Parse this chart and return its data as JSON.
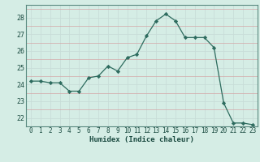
{
  "x": [
    0,
    1,
    2,
    3,
    4,
    5,
    6,
    7,
    8,
    9,
    10,
    11,
    12,
    13,
    14,
    15,
    16,
    17,
    18,
    19,
    20,
    21,
    22,
    23
  ],
  "y": [
    24.2,
    24.2,
    24.1,
    24.1,
    23.6,
    23.6,
    24.4,
    24.5,
    25.1,
    24.8,
    25.6,
    25.8,
    26.9,
    27.8,
    28.2,
    27.8,
    26.8,
    26.8,
    26.8,
    26.2,
    22.9,
    21.7,
    21.7,
    21.6
  ],
  "line_color": "#2d6b5e",
  "marker": "D",
  "marker_size": 2.2,
  "bg_color": "#d5ede5",
  "grid_major_color": "#c8ddd8",
  "grid_minor_color": "#e0b8b8",
  "xlabel": "Humidex (Indice chaleur)",
  "ylim": [
    21.5,
    28.75
  ],
  "xlim": [
    -0.5,
    23.5
  ],
  "yticks": [
    22,
    23,
    24,
    25,
    26,
    27,
    28
  ],
  "xticks": [
    0,
    1,
    2,
    3,
    4,
    5,
    6,
    7,
    8,
    9,
    10,
    11,
    12,
    13,
    14,
    15,
    16,
    17,
    18,
    19,
    20,
    21,
    22,
    23
  ]
}
